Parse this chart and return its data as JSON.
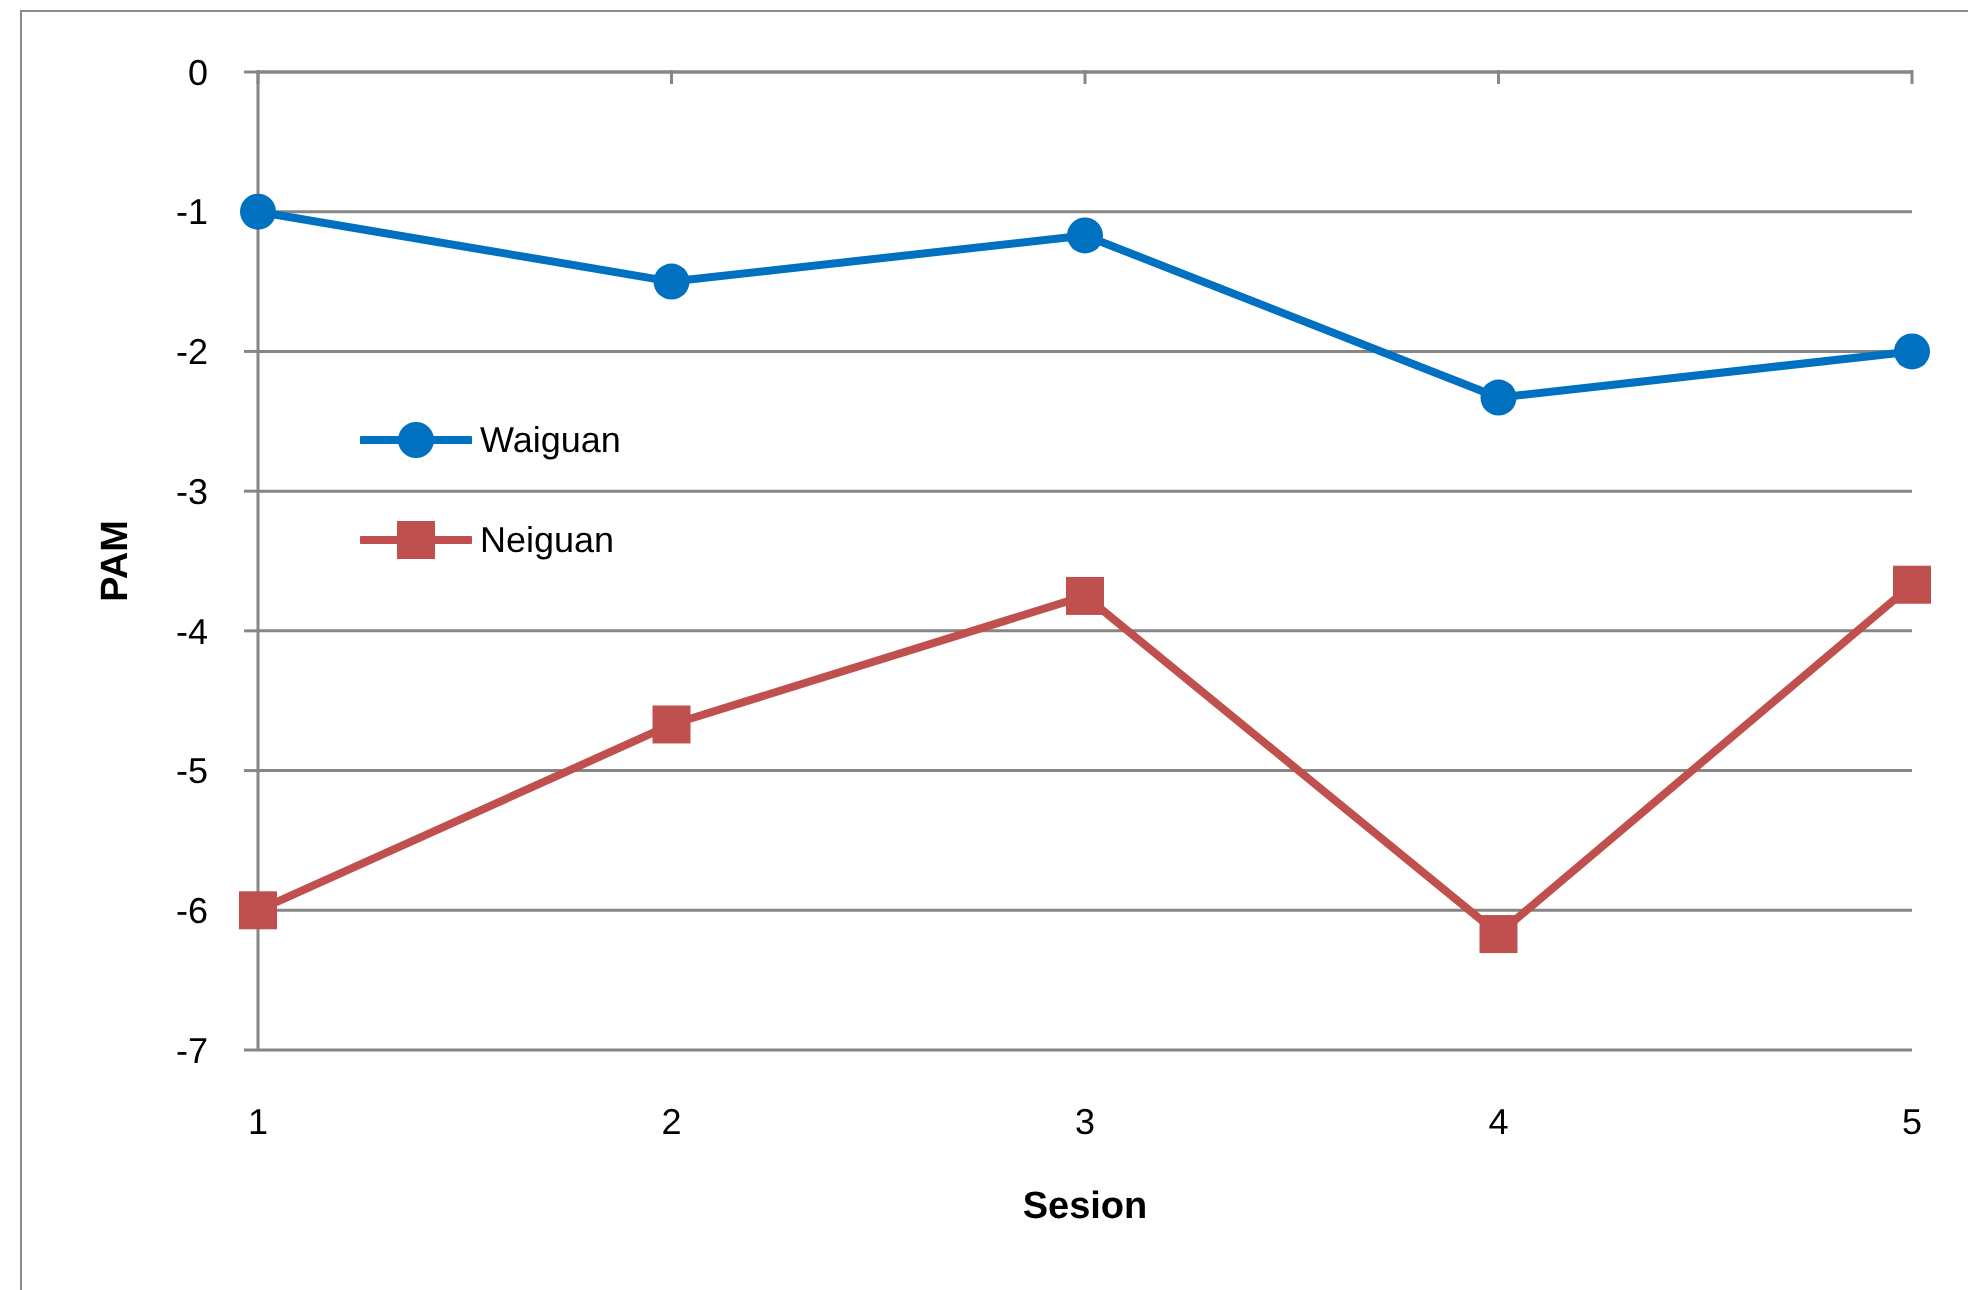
{
  "chart_data": {
    "type": "line",
    "xlabel": "Sesion",
    "ylabel": "PAM",
    "categories": [
      "1",
      "2",
      "3",
      "4",
      "5"
    ],
    "series": [
      {
        "name": "Waiguan",
        "color": "#0070c0",
        "marker": "circle",
        "values": [
          -1,
          -1.5,
          -1.17,
          -2.33,
          -2
        ]
      },
      {
        "name": "Neiguan",
        "color": "#c0504d",
        "marker": "square",
        "values": [
          -6,
          -4.67,
          -3.75,
          -6.17,
          -3.67
        ]
      }
    ],
    "ylim": [
      -7,
      0
    ],
    "yticks": [
      -7,
      -6,
      -5,
      -4,
      -3,
      -2,
      -1,
      0
    ],
    "grid": "y",
    "legend": "left",
    "line_style": "solid"
  }
}
